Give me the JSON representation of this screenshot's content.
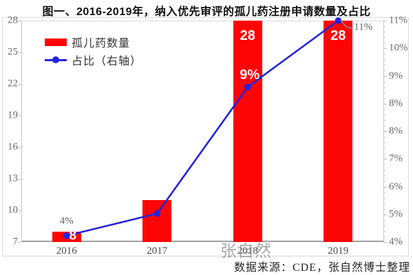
{
  "title": "图一、2016-2019年，纳入优先审评的孤儿药注册申请数量及占比",
  "source": "数据来源：CDE，张自然博士整理",
  "watermark": "张自然",
  "legend": [
    {
      "label": "孤儿药数量",
      "type": "bar"
    },
    {
      "label": "占比（右轴）",
      "type": "line"
    }
  ],
  "colors": {
    "bar": "#fe0505",
    "line": "#2323dd",
    "axis_text": "#6b6b6b",
    "x_label_text": "#4a4a4a",
    "white_label": "#ffffff",
    "border": "#d9d9d9",
    "leader": "#999999"
  },
  "chart_data": {
    "type": "bar",
    "subtype": "bar+line combo, dual axis",
    "title": "图一、2016-2019年，纳入优先审评的孤儿药注册申请数量及占比",
    "categories": [
      "2016",
      "2017",
      "2018",
      "2019"
    ],
    "series": [
      {
        "name": "孤儿药数量",
        "type": "bar",
        "axis": "left",
        "values": [
          8,
          11,
          28,
          28
        ]
      },
      {
        "name": "占比（右轴）",
        "type": "line",
        "axis": "right",
        "values_percent": [
          4.2,
          4.9,
          8.9,
          11
        ]
      }
    ],
    "left_axis": {
      "min": 7,
      "max": 28,
      "tick_step": 3,
      "tick_labels_top_to_bottom": [
        "28",
        "25",
        "22",
        "19",
        "16",
        "13",
        "10",
        "7"
      ]
    },
    "right_axis": {
      "min": 4,
      "max": 11,
      "tick_labels_top_to_bottom": [
        "11%",
        "10%",
        "9%",
        "8%",
        "8%",
        "7%",
        "6%",
        "5%",
        "4%"
      ]
    },
    "grid": "off",
    "legend_position": "top-left inside plot",
    "point_labels": [
      {
        "text": "4%",
        "cat": 0,
        "kind": "gray-above-bar"
      },
      {
        "text": "8",
        "cat": 0,
        "kind": "white-on-dot"
      },
      {
        "text": "9%",
        "cat": 2,
        "kind": "white-above-dot"
      },
      {
        "text": "28",
        "cat": 2,
        "kind": "white-bar-top"
      },
      {
        "text": "28",
        "cat": 3,
        "kind": "white-bar-top"
      },
      {
        "text": "11%",
        "cat": 3,
        "kind": "gray-right-leader"
      }
    ]
  }
}
